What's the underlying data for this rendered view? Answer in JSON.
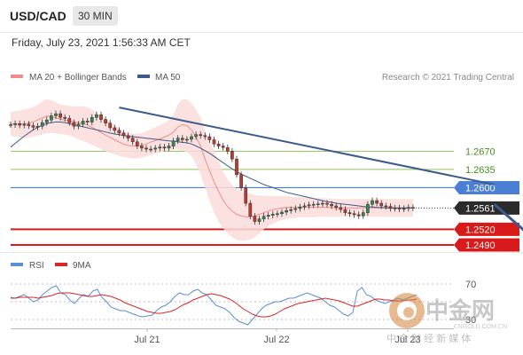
{
  "header": {
    "symbol": "USD/CAD",
    "timeframe": "30 MIN"
  },
  "subheader": {
    "datetime": "Friday, July 23, 2021 1:56:33 AM CET"
  },
  "legend": {
    "ma20": "MA 20 + Bollinger Bands",
    "ma50": "MA 50",
    "credit": "Research © 2021 Trading Central",
    "rsi": "RSI",
    "rsi_ma": "9MA"
  },
  "colors": {
    "ma20": "#f28b8b",
    "band_fill": "#fbdcdc",
    "ma50": "#3a5b8c",
    "trendline": "#3a5b8c",
    "resistance": "#8fc25a",
    "resistance_text": "#4a8f1a",
    "pivot": "#4a7fd4",
    "support": "#d91a1a",
    "current": "#2b2b2b",
    "candle_up": "#2e8b57",
    "candle_down": "#c0392b",
    "rsi": "#5b8ed6",
    "rsi_ma": "#d92626"
  },
  "chart_data": [
    {
      "type": "candlestick",
      "title": "USD/CAD",
      "x_tick_labels": [
        "Jul 21",
        "Jul 22",
        "Jul 23"
      ],
      "ylim": [
        1.2478,
        1.279
      ],
      "levels": [
        {
          "value": 1.267,
          "label": "1.2670",
          "kind": "resistance"
        },
        {
          "value": 1.2635,
          "label": "1.2635",
          "kind": "resistance"
        },
        {
          "value": 1.26,
          "label": "1.2600",
          "kind": "pivot"
        },
        {
          "value": 1.2561,
          "label": "1.2561",
          "kind": "current"
        },
        {
          "value": 1.252,
          "label": "1.2520",
          "kind": "support"
        },
        {
          "value": 1.249,
          "label": "1.2490",
          "kind": "support"
        }
      ],
      "close": [
        1.2721,
        1.2723,
        1.272,
        1.2722,
        1.2719,
        1.2716,
        1.2718,
        1.2725,
        1.273,
        1.2738,
        1.2742,
        1.2735,
        1.2733,
        1.2725,
        1.2718,
        1.2722,
        1.2728,
        1.2726,
        1.2735,
        1.274,
        1.2731,
        1.2724,
        1.2715,
        1.271,
        1.2705,
        1.27,
        1.2695,
        1.2688,
        1.268,
        1.2676,
        1.2674,
        1.2674,
        1.2676,
        1.2678,
        1.2676,
        1.268,
        1.269,
        1.2695,
        1.2692,
        1.2693,
        1.2698,
        1.2702,
        1.27,
        1.2698,
        1.2692,
        1.2684,
        1.268,
        1.2677,
        1.267,
        1.2655,
        1.2625,
        1.26,
        1.257,
        1.2545,
        1.2535,
        1.254,
        1.2545,
        1.2547,
        1.2549,
        1.255,
        1.2553,
        1.2556,
        1.2558,
        1.256,
        1.2563,
        1.2565,
        1.2567,
        1.2568,
        1.2569,
        1.257,
        1.2568,
        1.2565,
        1.2562,
        1.2558,
        1.2552,
        1.255,
        1.2548,
        1.2546,
        1.2552,
        1.2568,
        1.2575,
        1.257,
        1.2565,
        1.2564,
        1.256,
        1.2561,
        1.2559,
        1.256,
        1.2562,
        1.2561
      ],
      "bb_upper": [
        1.2745,
        1.2747,
        1.2748,
        1.275,
        1.2752,
        1.2755,
        1.276,
        1.2766,
        1.277,
        1.2768,
        1.2764,
        1.276,
        1.2758,
        1.2757,
        1.2756,
        1.2756,
        1.2756,
        1.2755,
        1.275,
        1.2744,
        1.2738,
        1.2732,
        1.2726,
        1.272,
        1.2714,
        1.2708,
        1.2705,
        1.2704,
        1.2704,
        1.2705,
        1.2708,
        1.2712,
        1.2716,
        1.272,
        1.2724,
        1.273,
        1.274,
        1.276,
        1.277,
        1.277,
        1.2762,
        1.275,
        1.2735,
        1.271,
        1.269,
        1.267,
        1.265,
        1.263,
        1.2615,
        1.2605,
        1.2598,
        1.2593,
        1.259,
        1.2588,
        1.2586,
        1.2585,
        1.2584,
        1.2584,
        1.2584,
        1.2584,
        1.2584,
        1.2584,
        1.2583,
        1.2582,
        1.2582,
        1.2582,
        1.2582,
        1.2581,
        1.258,
        1.258,
        1.258,
        1.2579,
        1.2578,
        1.2578,
        1.2578,
        1.2578,
        1.2578,
        1.2578,
        1.2578,
        1.2578,
        1.2578,
        1.2578,
        1.2578,
        1.2578,
        1.2578,
        1.2578,
        1.2578,
        1.2578,
        1.2578,
        1.2578
      ],
      "bb_lower": [
        1.27,
        1.2698,
        1.2696,
        1.2695,
        1.2696,
        1.2698,
        1.27,
        1.2702,
        1.2705,
        1.2705,
        1.2704,
        1.2703,
        1.2702,
        1.27,
        1.2697,
        1.2693,
        1.269,
        1.2686,
        1.2682,
        1.2678,
        1.2674,
        1.267,
        1.2667,
        1.2664,
        1.2661,
        1.2659,
        1.2657,
        1.2656,
        1.2656,
        1.2658,
        1.266,
        1.2663,
        1.2665,
        1.2667,
        1.267,
        1.2672,
        1.2673,
        1.2673,
        1.2672,
        1.2668,
        1.266,
        1.2645,
        1.2625,
        1.26,
        1.2575,
        1.2553,
        1.2535,
        1.2522,
        1.2512,
        1.2505,
        1.25,
        1.2498,
        1.2498,
        1.25,
        1.2505,
        1.2512,
        1.252,
        1.2526,
        1.2531,
        1.2535,
        1.2538,
        1.254,
        1.2541,
        1.2542,
        1.2543,
        1.2543,
        1.2543,
        1.2543,
        1.2544,
        1.2544,
        1.2544,
        1.2544,
        1.2544,
        1.2544,
        1.2544,
        1.2544,
        1.2544,
        1.2544,
        1.2544,
        1.2544,
        1.2544,
        1.2544,
        1.2544,
        1.2544,
        1.2544,
        1.2544,
        1.2544,
        1.2544,
        1.2544,
        1.2544
      ],
      "ma50": [
        1.2678,
        1.2685,
        1.2692,
        1.2699,
        1.2705,
        1.2711,
        1.2716,
        1.272,
        1.2723,
        1.2725,
        1.2726,
        1.2726,
        1.2725,
        1.2723,
        1.2721,
        1.2719,
        1.2717,
        1.2715,
        1.2713,
        1.2711,
        1.2709,
        1.2707,
        1.2705,
        1.2703,
        1.2702,
        1.27,
        1.2699,
        1.2698,
        1.2697,
        1.2696,
        1.2695,
        1.2694,
        1.2693,
        1.2692,
        1.2691,
        1.269,
        1.2689,
        1.2688,
        1.2687,
        1.2686,
        1.2684,
        1.268,
        1.2676,
        1.2671,
        1.2666,
        1.266,
        1.2654,
        1.2648,
        1.2642,
        1.2636,
        1.2631,
        1.2626,
        1.2622,
        1.2618,
        1.2614,
        1.261,
        1.2606,
        1.2603,
        1.26,
        1.2597,
        1.2594,
        1.2591,
        1.2589,
        1.2587,
        1.2585,
        1.2583,
        1.2581,
        1.2579,
        1.2577,
        1.2575,
        1.2573,
        1.2572,
        1.257,
        1.2569,
        1.2568,
        1.2567,
        1.2566,
        1.2565,
        1.2564,
        1.2563,
        1.2563,
        1.2562,
        1.2562,
        1.2561,
        1.2561,
        1.2561,
        1.2561,
        1.2561,
        1.2561,
        1.2561
      ],
      "trendline": {
        "start": {
          "bar": 24,
          "price": 1.2754
        },
        "end": {
          "bar": 107,
          "price": 1.2606
        }
      },
      "projection": {
        "start": {
          "bar": 107,
          "price": 1.2568
        },
        "end": {
          "bar": 116,
          "price": 1.2497
        }
      }
    },
    {
      "type": "line",
      "title": "RSI",
      "ylim": [
        20,
        80
      ],
      "y_tick_labels": [
        "70",
        "30"
      ],
      "levels": [
        70,
        50,
        30
      ],
      "series": [
        {
          "name": "RSI",
          "values": [
            55,
            54,
            56,
            58,
            54,
            50,
            52,
            58,
            62,
            66,
            68,
            60,
            58,
            52,
            48,
            54,
            58,
            56,
            62,
            64,
            55,
            50,
            44,
            42,
            40,
            40,
            38,
            36,
            34,
            33,
            34,
            35,
            40,
            44,
            46,
            50,
            56,
            60,
            58,
            58,
            62,
            64,
            60,
            58,
            52,
            46,
            44,
            42,
            38,
            32,
            28,
            26,
            24,
            30,
            36,
            42,
            46,
            48,
            50,
            50,
            52,
            54,
            54,
            56,
            58,
            60,
            58,
            56,
            54,
            50,
            46,
            44,
            40,
            36,
            34,
            38,
            62,
            66,
            58,
            56,
            52,
            50,
            48,
            50,
            52,
            54,
            52,
            54,
            56,
            58
          ]
        },
        {
          "name": "9MA",
          "values": [
            54,
            54,
            55,
            55,
            55,
            55,
            54,
            55,
            56,
            57,
            59,
            60,
            60,
            60,
            59,
            58,
            57,
            56,
            56,
            57,
            58,
            57,
            56,
            54,
            52,
            49,
            47,
            45,
            43,
            41,
            39,
            38,
            37,
            37,
            38,
            39,
            41,
            44,
            47,
            49,
            52,
            54,
            56,
            58,
            59,
            58,
            57,
            55,
            53,
            50,
            46,
            42,
            39,
            36,
            34,
            33,
            33,
            34,
            36,
            39,
            42,
            44,
            46,
            48,
            49,
            50,
            51,
            52,
            53,
            54,
            53,
            52,
            51,
            49,
            47,
            45,
            45,
            47,
            49,
            51,
            53,
            53,
            52,
            52,
            51,
            51,
            51,
            52,
            52,
            53
          ]
        }
      ]
    }
  ],
  "watermark": {
    "title": "中金网",
    "sub": "CNGOLD.COM.CN",
    "tagline": "中 金 财 经 新 媒 体"
  }
}
